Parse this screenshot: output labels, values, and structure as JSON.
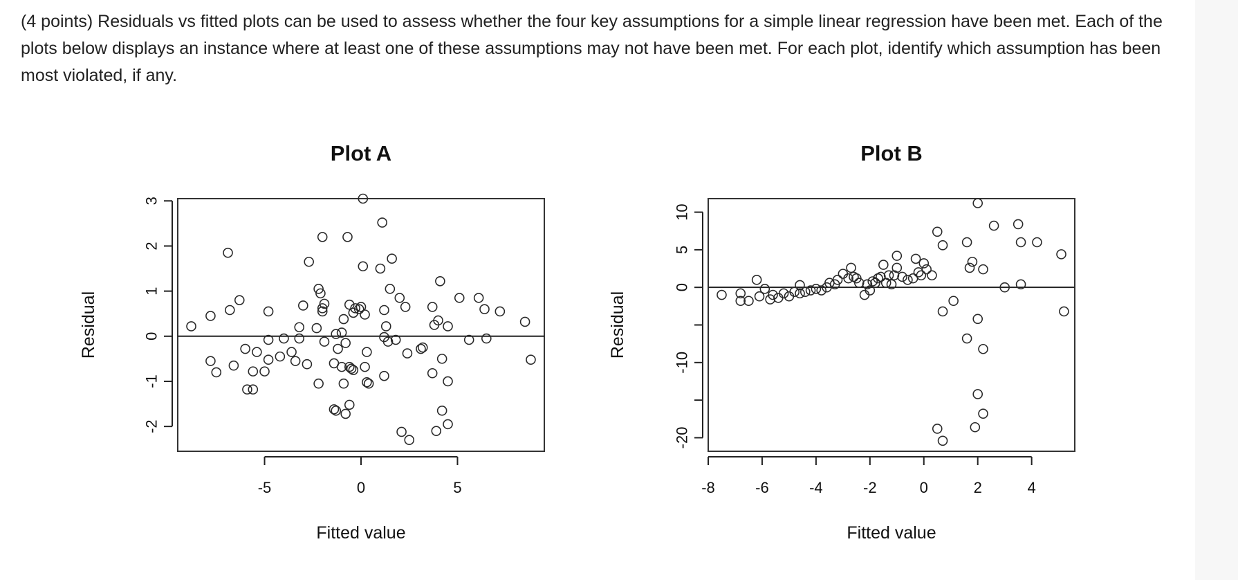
{
  "question": {
    "text": "(4 points) Residuals vs fitted plots can be used to assess whether the four key assumptions for a simple linear regression have been met. Each of the plots below displays an instance where at least one of these assumptions may not have been met. For each plot, identify which assumption has been most violated, if any."
  },
  "chart_data": [
    {
      "type": "scatter",
      "title": "Plot A",
      "xlabel": "Fitted value",
      "ylabel": "Residual",
      "xlim": [
        -9.5,
        9.5
      ],
      "ylim": [
        -2.55,
        3.05
      ],
      "xticks": [
        -5,
        0,
        5
      ],
      "xtick_labels": [
        "-5",
        "0",
        "5"
      ],
      "yticks": [
        -2,
        -1,
        0,
        1,
        2,
        3
      ],
      "ytick_labels": [
        "-2",
        "-1",
        "0",
        "1",
        "2",
        "3"
      ],
      "reference_line_y": 0,
      "grid": false,
      "marker": "open-circle",
      "points": [
        [
          -8.8,
          0.22
        ],
        [
          -7.8,
          0.45
        ],
        [
          -7.8,
          -0.55
        ],
        [
          -7.5,
          -0.8
        ],
        [
          -6.9,
          1.85
        ],
        [
          -6.8,
          0.58
        ],
        [
          -6.6,
          -0.65
        ],
        [
          -6.3,
          0.8
        ],
        [
          -6.0,
          -0.28
        ],
        [
          -5.9,
          -1.18
        ],
        [
          -5.6,
          -1.18
        ],
        [
          -5.6,
          -0.78
        ],
        [
          -5.4,
          -0.35
        ],
        [
          -5.0,
          -0.78
        ],
        [
          -4.8,
          0.55
        ],
        [
          -4.8,
          -0.08
        ],
        [
          -4.8,
          -0.52
        ],
        [
          -4.2,
          -0.45
        ],
        [
          -4.0,
          -0.05
        ],
        [
          -3.6,
          -0.35
        ],
        [
          -3.4,
          -0.55
        ],
        [
          -3.2,
          0.2
        ],
        [
          -3.2,
          -0.05
        ],
        [
          -3.0,
          0.68
        ],
        [
          -2.8,
          -0.62
        ],
        [
          -2.7,
          1.65
        ],
        [
          -2.3,
          0.18
        ],
        [
          -2.2,
          -1.05
        ],
        [
          -2.2,
          1.05
        ],
        [
          -2.1,
          0.95
        ],
        [
          -2.0,
          0.62
        ],
        [
          -2.0,
          0.55
        ],
        [
          -2.0,
          2.2
        ],
        [
          -1.9,
          0.72
        ],
        [
          -1.9,
          -0.12
        ],
        [
          -1.4,
          -0.6
        ],
        [
          -1.4,
          -1.62
        ],
        [
          -1.3,
          -1.65
        ],
        [
          -1.3,
          0.05
        ],
        [
          -1.2,
          -0.28
        ],
        [
          -1.0,
          0.08
        ],
        [
          -1.0,
          -0.68
        ],
        [
          -0.9,
          -1.05
        ],
        [
          -0.9,
          0.38
        ],
        [
          -0.8,
          -1.72
        ],
        [
          -0.8,
          -0.15
        ],
        [
          -0.7,
          2.2
        ],
        [
          -0.6,
          0.7
        ],
        [
          -0.6,
          -1.52
        ],
        [
          -0.6,
          -0.68
        ],
        [
          -0.5,
          -0.72
        ],
        [
          -0.4,
          0.52
        ],
        [
          -0.4,
          -0.75
        ],
        [
          -0.3,
          0.62
        ],
        [
          -0.1,
          0.6
        ],
        [
          0.0,
          0.65
        ],
        [
          0.1,
          3.05
        ],
        [
          0.1,
          1.55
        ],
        [
          0.2,
          0.48
        ],
        [
          0.2,
          -0.68
        ],
        [
          0.3,
          -1.02
        ],
        [
          0.3,
          -0.35
        ],
        [
          0.4,
          -1.05
        ],
        [
          1.0,
          1.5
        ],
        [
          1.1,
          2.52
        ],
        [
          1.2,
          -0.88
        ],
        [
          1.2,
          0.58
        ],
        [
          1.2,
          -0.02
        ],
        [
          1.3,
          0.22
        ],
        [
          1.4,
          -0.12
        ],
        [
          1.5,
          1.05
        ],
        [
          1.6,
          1.72
        ],
        [
          1.8,
          -0.08
        ],
        [
          2.0,
          0.85
        ],
        [
          2.1,
          -2.12
        ],
        [
          2.3,
          0.65
        ],
        [
          2.4,
          -0.38
        ],
        [
          2.5,
          -2.3
        ],
        [
          3.1,
          -0.28
        ],
        [
          3.2,
          -0.25
        ],
        [
          3.7,
          0.65
        ],
        [
          3.7,
          -0.82
        ],
        [
          3.8,
          0.25
        ],
        [
          3.9,
          -2.1
        ],
        [
          4.0,
          0.35
        ],
        [
          4.1,
          1.22
        ],
        [
          4.2,
          -0.5
        ],
        [
          4.2,
          -1.65
        ],
        [
          4.5,
          0.22
        ],
        [
          4.5,
          -1.0
        ],
        [
          4.5,
          -1.95
        ],
        [
          5.1,
          0.85
        ],
        [
          5.6,
          -0.08
        ],
        [
          6.1,
          0.85
        ],
        [
          6.4,
          0.6
        ],
        [
          6.5,
          -0.05
        ],
        [
          7.2,
          0.55
        ],
        [
          8.5,
          0.32
        ],
        [
          8.8,
          -0.52
        ]
      ]
    },
    {
      "type": "scatter",
      "title": "Plot B",
      "xlabel": "Fitted value",
      "ylabel": "Residual",
      "xlim": [
        -8,
        5.6
      ],
      "ylim": [
        -21.8,
        11.8
      ],
      "xticks": [
        -8,
        -6,
        -4,
        -2,
        0,
        2,
        4
      ],
      "xtick_labels": [
        "-8",
        "-6",
        "-4",
        "-2",
        "0",
        "2",
        "4"
      ],
      "yticks": [
        -20,
        -15,
        -10,
        -5,
        0,
        5,
        10
      ],
      "ytick_labels": [
        "-20",
        "",
        "-10",
        "",
        "0",
        "5",
        "10"
      ],
      "reference_line_y": 0,
      "grid": false,
      "marker": "open-circle",
      "points": [
        [
          -7.5,
          -1.0
        ],
        [
          -6.8,
          -1.8
        ],
        [
          -6.8,
          -0.8
        ],
        [
          -6.5,
          -1.8
        ],
        [
          -6.2,
          1.0
        ],
        [
          -6.1,
          -1.2
        ],
        [
          -5.9,
          -0.2
        ],
        [
          -5.7,
          -1.6
        ],
        [
          -5.6,
          -1.0
        ],
        [
          -5.4,
          -1.4
        ],
        [
          -5.2,
          -0.8
        ],
        [
          -5.0,
          -1.2
        ],
        [
          -4.8,
          -0.6
        ],
        [
          -4.6,
          -0.8
        ],
        [
          -4.6,
          0.3
        ],
        [
          -4.4,
          -0.6
        ],
        [
          -4.2,
          -0.4
        ],
        [
          -4.0,
          -0.2
        ],
        [
          -3.8,
          -0.4
        ],
        [
          -3.6,
          0.0
        ],
        [
          -3.5,
          0.6
        ],
        [
          -3.3,
          0.4
        ],
        [
          -3.2,
          1.0
        ],
        [
          -3.0,
          1.8
        ],
        [
          -2.8,
          1.2
        ],
        [
          -2.7,
          2.6
        ],
        [
          -2.6,
          1.4
        ],
        [
          -2.5,
          1.2
        ],
        [
          -2.4,
          0.6
        ],
        [
          -2.2,
          -1.0
        ],
        [
          -2.1,
          0.4
        ],
        [
          -2.0,
          -0.4
        ],
        [
          -1.9,
          0.8
        ],
        [
          -1.8,
          0.6
        ],
        [
          -1.7,
          1.2
        ],
        [
          -1.6,
          1.4
        ],
        [
          -1.5,
          3.0
        ],
        [
          -1.4,
          0.6
        ],
        [
          -1.3,
          1.6
        ],
        [
          -1.2,
          0.4
        ],
        [
          -1.1,
          1.6
        ],
        [
          -1.0,
          4.2
        ],
        [
          -1.0,
          2.6
        ],
        [
          -0.8,
          1.4
        ],
        [
          -0.6,
          1.0
        ],
        [
          -0.4,
          1.2
        ],
        [
          -0.3,
          3.8
        ],
        [
          -0.2,
          2.0
        ],
        [
          -0.1,
          1.6
        ],
        [
          0.0,
          3.2
        ],
        [
          0.1,
          2.4
        ],
        [
          0.3,
          1.6
        ],
        [
          0.5,
          7.4
        ],
        [
          0.5,
          -18.8
        ],
        [
          0.7,
          5.6
        ],
        [
          0.7,
          -3.2
        ],
        [
          0.7,
          -20.4
        ],
        [
          1.1,
          -1.8
        ],
        [
          1.6,
          6.0
        ],
        [
          1.6,
          -6.8
        ],
        [
          1.7,
          2.6
        ],
        [
          1.8,
          3.4
        ],
        [
          1.9,
          -18.6
        ],
        [
          2.0,
          11.2
        ],
        [
          2.0,
          -4.2
        ],
        [
          2.0,
          -14.2
        ],
        [
          2.2,
          2.4
        ],
        [
          2.2,
          -8.2
        ],
        [
          2.2,
          -16.8
        ],
        [
          2.6,
          8.2
        ],
        [
          3.0,
          0.0
        ],
        [
          3.5,
          8.4
        ],
        [
          3.6,
          6.0
        ],
        [
          3.6,
          0.4
        ],
        [
          4.2,
          6.0
        ],
        [
          5.1,
          4.4
        ],
        [
          5.2,
          -3.2
        ]
      ]
    }
  ]
}
